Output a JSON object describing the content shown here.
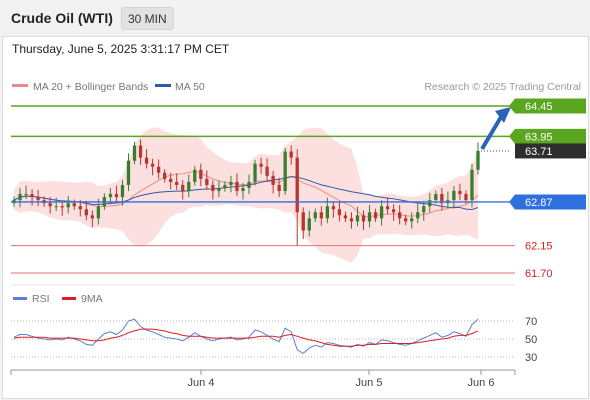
{
  "header": {
    "title": "Crude Oil (WTI)",
    "timeframe": "30 MIN"
  },
  "datetime": "Thursday, June 5, 2025 3:31:17 PM CET",
  "colors": {
    "ma20": "#f08a8a",
    "bands_fill": "#fbd6d6",
    "ma50": "#2e5aa8",
    "bull_candle": "#3a7d2e",
    "bear_candle": "#b8362e",
    "resistance": "#5aa61e",
    "support_red": "#e27070",
    "pivot": "#2f6fe0",
    "rsi": "#5b7fd6",
    "rsi_ma": "#d92020",
    "arrow": "#2a63b8",
    "price_tag": "#2d2d2d"
  },
  "legend": {
    "ma20_label": "MA 20 + Bollinger Bands",
    "ma50_label": "MA 50",
    "credit": "Research © 2025 Trading Central"
  },
  "rsi_legend": {
    "rsi_label": "RSI",
    "ma_label": "9MA"
  },
  "price_ticks": [
    "64.45",
    "63.95",
    "63.71",
    "62.87",
    "62.15",
    "61.70"
  ],
  "rsi_ticks": [
    "70",
    "50",
    "30"
  ],
  "x_ticks": [
    "Jun 4",
    "Jun 5",
    "Jun 6"
  ],
  "chart_data": [
    {
      "type": "candlestick",
      "title": "",
      "xlabel": "",
      "ylabel": "",
      "x_tick_labels": [
        "Jun 4",
        "Jun 5",
        "Jun 6"
      ],
      "ylim": [
        61.6,
        64.6
      ],
      "grid": false,
      "legend_position": "top",
      "overlays": [
        {
          "name": "MA 20 + Bollinger Bands",
          "style": "line-with-band"
        },
        {
          "name": "MA 50",
          "style": "line"
        }
      ],
      "levels": [
        {
          "value": 64.45,
          "kind": "resistance",
          "label": "64.45"
        },
        {
          "value": 63.95,
          "kind": "resistance",
          "label": "63.95"
        },
        {
          "value": 62.87,
          "kind": "pivot",
          "label": "62.87"
        },
        {
          "value": 62.15,
          "kind": "support",
          "label": "62.15"
        },
        {
          "value": 61.7,
          "kind": "support",
          "label": "61.70"
        }
      ],
      "last_price": 63.71,
      "outlook": "up",
      "close": [
        62.9,
        63.0,
        63.0,
        62.95,
        62.9,
        62.85,
        62.8,
        62.8,
        62.78,
        62.85,
        62.8,
        62.75,
        62.65,
        62.6,
        62.8,
        62.95,
        63.0,
        62.95,
        63.15,
        63.55,
        63.8,
        63.6,
        63.5,
        63.45,
        63.35,
        63.25,
        63.2,
        63.15,
        63.05,
        63.2,
        63.4,
        63.25,
        63.15,
        63.05,
        63.1,
        63.15,
        63.2,
        63.05,
        63.1,
        63.2,
        63.5,
        63.45,
        63.3,
        63.15,
        63.05,
        63.7,
        63.6,
        62.7,
        62.4,
        62.6,
        62.7,
        62.6,
        62.8,
        62.75,
        62.65,
        62.6,
        62.55,
        62.65,
        62.55,
        62.7,
        62.6,
        62.8,
        62.75,
        62.7,
        62.6,
        62.55,
        62.6,
        62.7,
        62.8,
        62.9,
        63.0,
        62.85,
        62.9,
        63.05,
        63.0,
        62.9,
        63.4,
        63.71
      ],
      "notes": "30-minute candles; values estimated from the price scale"
    },
    {
      "type": "line",
      "title": "",
      "series": [
        {
          "name": "RSI"
        },
        {
          "name": "9MA"
        }
      ],
      "ylim": [
        20,
        80
      ],
      "y_ticks": [
        70,
        50,
        30
      ],
      "rsi": [
        52,
        55,
        55,
        53,
        51,
        50,
        49,
        50,
        49,
        52,
        50,
        48,
        44,
        43,
        50,
        56,
        58,
        55,
        60,
        70,
        72,
        64,
        60,
        58,
        55,
        52,
        51,
        50,
        48,
        52,
        57,
        53,
        50,
        48,
        50,
        51,
        52,
        49,
        50,
        52,
        60,
        58,
        54,
        50,
        47,
        62,
        58,
        38,
        34,
        40,
        43,
        41,
        46,
        45,
        43,
        42,
        41,
        44,
        42,
        46,
        44,
        49,
        48,
        46,
        44,
        43,
        45,
        48,
        51,
        54,
        57,
        52,
        54,
        58,
        56,
        53,
        66,
        72
      ],
      "rsi_ma": [
        51,
        52,
        52,
        52,
        52,
        52,
        51,
        51,
        51,
        51,
        51,
        50,
        49,
        48,
        48,
        49,
        51,
        52,
        54,
        57,
        59,
        61,
        61,
        61,
        60,
        59,
        57,
        56,
        54,
        53,
        53,
        53,
        52,
        51,
        51,
        51,
        51,
        51,
        51,
        51,
        52,
        53,
        53,
        53,
        52,
        54,
        55,
        53,
        51,
        49,
        48,
        46,
        44,
        43,
        42,
        42,
        42,
        43,
        43,
        44,
        44,
        45,
        45,
        45,
        45,
        45,
        45,
        46,
        47,
        48,
        49,
        50,
        51,
        53,
        54,
        54,
        56,
        59
      ]
    }
  ]
}
